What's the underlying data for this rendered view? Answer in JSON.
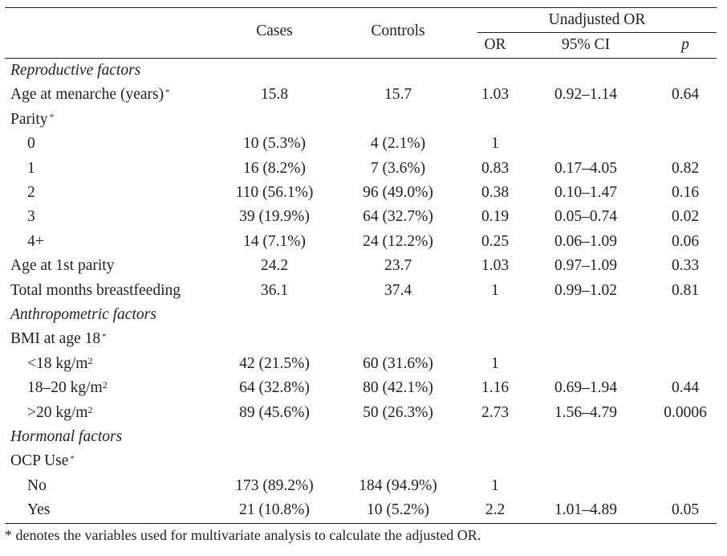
{
  "table": {
    "header": {
      "cases": "Cases",
      "controls": "Controls",
      "group": "Unadjusted OR",
      "or": "OR",
      "ci": "95% CI",
      "p": "p"
    },
    "rows": [
      {
        "kind": "section",
        "label": "Reproductive factors"
      },
      {
        "kind": "data",
        "label": "Age at menarche (years)",
        "star": "*",
        "cases": "15.8",
        "controls": "15.7",
        "or": "1.03",
        "ci": "0.92–1.14",
        "p": "0.64"
      },
      {
        "kind": "var",
        "label": "Parity",
        "star": "*"
      },
      {
        "kind": "sub",
        "label": "0",
        "cases": "10 (5.3%)",
        "controls": "4 (2.1%)",
        "or": "1",
        "ci": "",
        "p": ""
      },
      {
        "kind": "sub",
        "label": "1",
        "cases": "16 (8.2%)",
        "controls": "7 (3.6%)",
        "or": "0.83",
        "ci": "0.17–4.05",
        "p": "0.82"
      },
      {
        "kind": "sub",
        "label": "2",
        "cases": "110 (56.1%)",
        "controls": "96 (49.0%)",
        "or": "0.38",
        "ci": "0.10–1.47",
        "p": "0.16"
      },
      {
        "kind": "sub",
        "label": "3",
        "cases": "39 (19.9%)",
        "controls": "64 (32.7%)",
        "or": "0.19",
        "ci": "0.05–0.74",
        "p": "0.02"
      },
      {
        "kind": "sub",
        "label": "4+",
        "cases": "14 (7.1%)",
        "controls": "24 (12.2%)",
        "or": "0.25",
        "ci": "0.06–1.09",
        "p": "0.06"
      },
      {
        "kind": "data",
        "label": "Age at 1st parity",
        "cases": "24.2",
        "controls": "23.7",
        "or": "1.03",
        "ci": "0.97–1.09",
        "p": "0.33"
      },
      {
        "kind": "data",
        "label": "Total months breastfeeding",
        "cases": "36.1",
        "controls": "37.4",
        "or": "1",
        "ci": "0.99–1.02",
        "p": "0.81"
      },
      {
        "kind": "section",
        "label": "Anthropometric factors"
      },
      {
        "kind": "var",
        "label": "BMI at age 18",
        "star": "*"
      },
      {
        "kind": "sub",
        "label": "<18 kg/m",
        "sq": "2",
        "cases": "42 (21.5%)",
        "controls": "60 (31.6%)",
        "or": "1",
        "ci": "",
        "p": ""
      },
      {
        "kind": "sub",
        "label": "18–20 kg/m",
        "sq": "2",
        "cases": "64 (32.8%)",
        "controls": "80 (42.1%)",
        "or": "1.16",
        "ci": "0.69–1.94",
        "p": "0.44"
      },
      {
        "kind": "sub",
        "label": ">20 kg/m",
        "sq": "2",
        "cases": "89 (45.6%)",
        "controls": "50 (26.3%)",
        "or": "2.73",
        "ci": "1.56–4.79",
        "p": "0.0006"
      },
      {
        "kind": "section",
        "label": "Hormonal factors"
      },
      {
        "kind": "var",
        "label": "OCP Use",
        "star": "*"
      },
      {
        "kind": "sub",
        "label": "No",
        "cases": "173 (89.2%)",
        "controls": "184 (94.9%)",
        "or": "1",
        "ci": "",
        "p": ""
      },
      {
        "kind": "sub",
        "label": "Yes",
        "cases": "21 (10.8%)",
        "controls": "10 (5.2%)",
        "or": "2.2",
        "ci": "1.01–4.89",
        "p": "0.05"
      }
    ],
    "footnote": "* denotes the variables used for multivariate analysis to calculate the adjusted OR."
  }
}
